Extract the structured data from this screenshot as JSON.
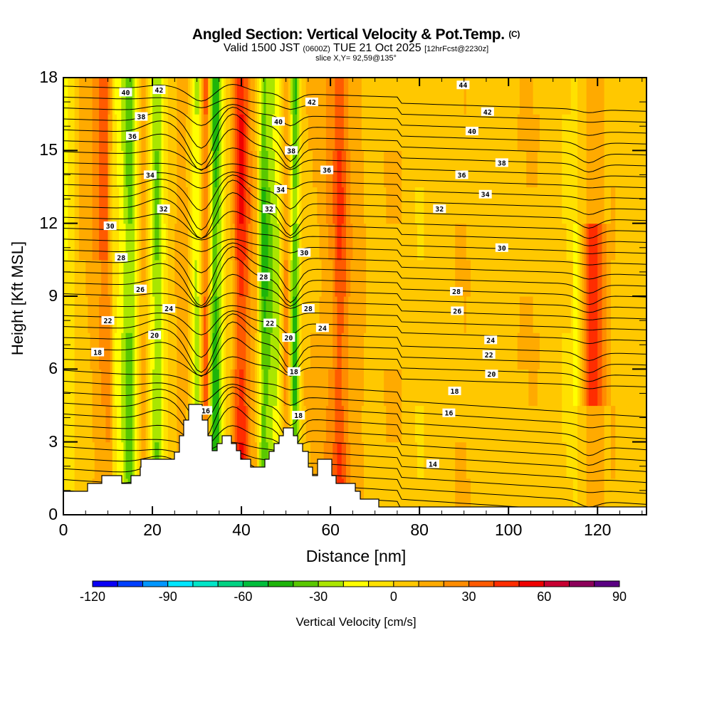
{
  "header": {
    "title": "Angled Section: Vertical Velocity & Pot.Temp.",
    "title_mark": "(C)",
    "valid_prefix": "Valid 1500 JST",
    "valid_utc": "(0600Z)",
    "valid_date": "TUE 21 Oct 2025",
    "forecast": "[12hrFcst@2230z]",
    "slice": "slice X,Y= 92,59@135°"
  },
  "chart_data": {
    "type": "heatmap",
    "title": "Angled Section: Vertical Velocity & Pot.Temp.",
    "xlabel": "Distance [nm]",
    "ylabel": "Height [Kft MSL]",
    "xlim": [
      0,
      131
    ],
    "ylim": [
      0,
      18
    ],
    "x_ticks": [
      0,
      20,
      40,
      60,
      80,
      100,
      120
    ],
    "x_tick_labels": [
      "0",
      "20",
      "40",
      "60",
      "80",
      "100",
      "120"
    ],
    "y_ticks": [
      0,
      3,
      6,
      9,
      12,
      15,
      18
    ],
    "y_tick_labels": [
      "0",
      "3",
      "6",
      "9",
      "12",
      "15",
      "18"
    ],
    "colorbar": {
      "title": "Vertical Velocity [cm/s]",
      "min": -120,
      "max": 90,
      "step": 10,
      "tick_values": [
        -120,
        -90,
        -60,
        -30,
        0,
        30,
        60,
        90
      ],
      "tick_labels": [
        "-120",
        "-90",
        "-60",
        "-30",
        "0",
        "30",
        "60",
        "90"
      ],
      "colors": [
        "#0a00f5",
        "#0040ff",
        "#0096ff",
        "#00e6ff",
        "#00e6c8",
        "#00d282",
        "#00be3c",
        "#1eb40a",
        "#5ac800",
        "#aae600",
        "#ffff00",
        "#ffe100",
        "#ffc800",
        "#ffaa00",
        "#ff8c00",
        "#ff5a00",
        "#ff2d00",
        "#f00000",
        "#c80032",
        "#8c005a",
        "#5a0082"
      ]
    },
    "velocity_columns": [
      {
        "x": 0,
        "w": -8
      },
      {
        "x": 5,
        "w": 10
      },
      {
        "x": 10,
        "w": 25
      },
      {
        "x": 12,
        "w": -12
      },
      {
        "x": 15,
        "w": -38
      },
      {
        "x": 18,
        "w": 15
      },
      {
        "x": 21,
        "w": -35
      },
      {
        "x": 24,
        "w": 5
      },
      {
        "x": 27,
        "w": 20
      },
      {
        "x": 30,
        "w": -25
      },
      {
        "x": 32,
        "w": 35
      },
      {
        "x": 34,
        "w": -50
      },
      {
        "x": 37,
        "w": 5
      },
      {
        "x": 40,
        "w": 55
      },
      {
        "x": 43,
        "w": 15
      },
      {
        "x": 45,
        "w": -45
      },
      {
        "x": 48,
        "w": -25
      },
      {
        "x": 50,
        "w": 25
      },
      {
        "x": 52,
        "w": -45
      },
      {
        "x": 54,
        "w": 10
      },
      {
        "x": 57,
        "w": 12
      },
      {
        "x": 60,
        "w": 25
      },
      {
        "x": 62,
        "w": 45
      },
      {
        "x": 65,
        "w": 20
      },
      {
        "x": 70,
        "w": 5
      },
      {
        "x": 75,
        "w": 8
      },
      {
        "x": 80,
        "w": -5
      },
      {
        "x": 85,
        "w": 3
      },
      {
        "x": 90,
        "w": 8
      },
      {
        "x": 95,
        "w": -3
      },
      {
        "x": 100,
        "w": 5
      },
      {
        "x": 105,
        "w": 8
      },
      {
        "x": 110,
        "w": 2
      },
      {
        "x": 115,
        "w": -15
      },
      {
        "x": 119,
        "w": 40
      },
      {
        "x": 123,
        "w": 8
      },
      {
        "x": 127,
        "w": -2
      },
      {
        "x": 131,
        "w": 5
      }
    ],
    "contour_labels": [
      {
        "text": "40",
        "x": 14,
        "y": 17.4
      },
      {
        "text": "42",
        "x": 21.5,
        "y": 17.5
      },
      {
        "text": "38",
        "x": 17.5,
        "y": 16.4
      },
      {
        "text": "36",
        "x": 15.5,
        "y": 15.6
      },
      {
        "text": "34",
        "x": 19.5,
        "y": 14.0
      },
      {
        "text": "32",
        "x": 22.5,
        "y": 12.6
      },
      {
        "text": "30",
        "x": 10.5,
        "y": 11.9
      },
      {
        "text": "28",
        "x": 13,
        "y": 10.6
      },
      {
        "text": "26",
        "x": 17.3,
        "y": 9.3
      },
      {
        "text": "24",
        "x": 23.7,
        "y": 8.5
      },
      {
        "text": "22",
        "x": 10,
        "y": 8.0
      },
      {
        "text": "20",
        "x": 20.5,
        "y": 7.4
      },
      {
        "text": "18",
        "x": 7.7,
        "y": 6.7
      },
      {
        "text": "42",
        "x": 55.8,
        "y": 17.0
      },
      {
        "text": "40",
        "x": 48.3,
        "y": 16.2
      },
      {
        "text": "38",
        "x": 51.2,
        "y": 15.0
      },
      {
        "text": "36",
        "x": 59.2,
        "y": 14.2
      },
      {
        "text": "34",
        "x": 48.8,
        "y": 13.4
      },
      {
        "text": "32",
        "x": 46.2,
        "y": 12.6
      },
      {
        "text": "30",
        "x": 54.1,
        "y": 10.8
      },
      {
        "text": "28",
        "x": 45,
        "y": 9.8
      },
      {
        "text": "28",
        "x": 55,
        "y": 8.5
      },
      {
        "text": "22",
        "x": 46.4,
        "y": 7.9
      },
      {
        "text": "24",
        "x": 58.2,
        "y": 7.7
      },
      {
        "text": "20",
        "x": 50.6,
        "y": 7.3
      },
      {
        "text": "18",
        "x": 51.8,
        "y": 5.9
      },
      {
        "text": "16",
        "x": 32,
        "y": 4.3
      },
      {
        "text": "18",
        "x": 52.8,
        "y": 4.1
      },
      {
        "text": "44",
        "x": 89.8,
        "y": 17.7
      },
      {
        "text": "42",
        "x": 95.3,
        "y": 16.6
      },
      {
        "text": "40",
        "x": 91.8,
        "y": 15.8
      },
      {
        "text": "38",
        "x": 98.5,
        "y": 14.5
      },
      {
        "text": "36",
        "x": 89.5,
        "y": 14.0
      },
      {
        "text": "34",
        "x": 94.8,
        "y": 13.2
      },
      {
        "text": "32",
        "x": 84.5,
        "y": 12.6
      },
      {
        "text": "30",
        "x": 98.5,
        "y": 11.0
      },
      {
        "text": "28",
        "x": 88.3,
        "y": 9.2
      },
      {
        "text": "26",
        "x": 88.5,
        "y": 8.4
      },
      {
        "text": "24",
        "x": 96,
        "y": 7.2
      },
      {
        "text": "22",
        "x": 95.6,
        "y": 6.6
      },
      {
        "text": "20",
        "x": 96.2,
        "y": 5.8
      },
      {
        "text": "18",
        "x": 87.9,
        "y": 5.1
      },
      {
        "text": "16",
        "x": 86.6,
        "y": 4.2
      },
      {
        "text": "14",
        "x": 83,
        "y": 2.1
      }
    ],
    "grid": false
  }
}
